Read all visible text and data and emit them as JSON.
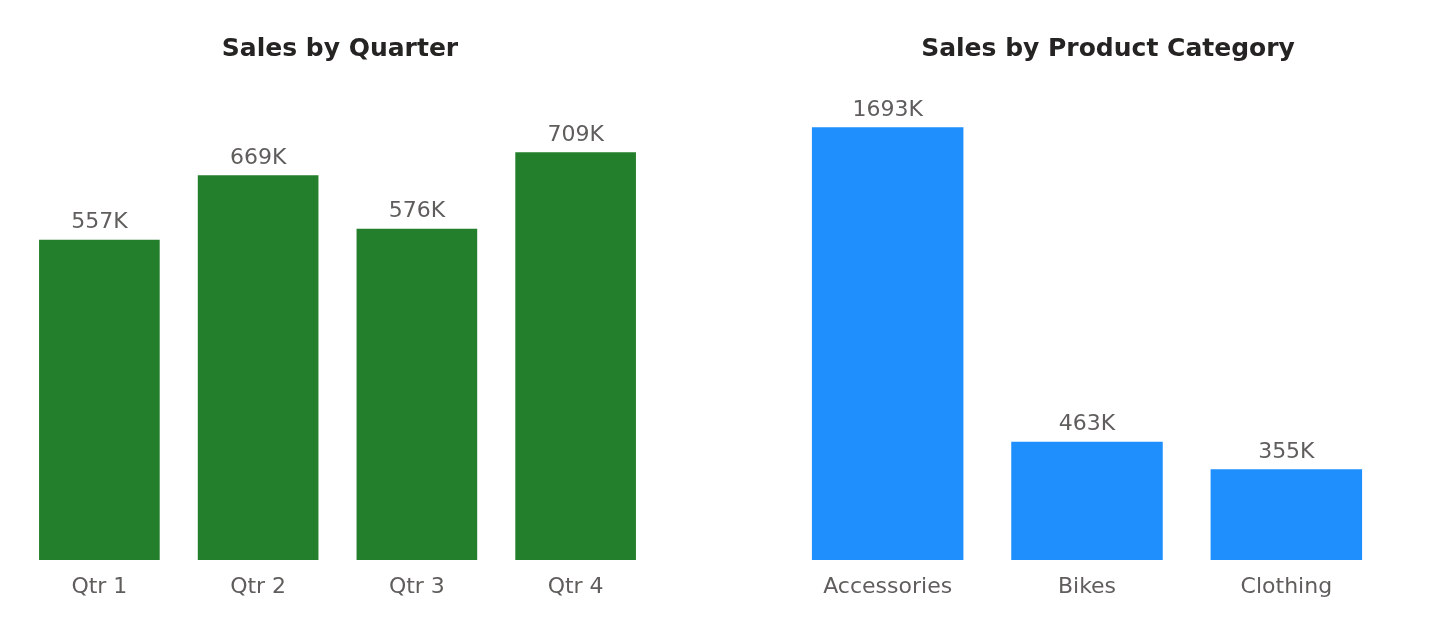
{
  "chart_data": [
    {
      "type": "bar",
      "title": "Sales by Quarter",
      "categories": [
        "Qtr 1",
        "Qtr 2",
        "Qtr 3",
        "Qtr 4"
      ],
      "values": [
        557000,
        669000,
        576000,
        709000
      ],
      "value_labels": [
        "557K",
        "669K",
        "576K",
        "709K"
      ],
      "color": "#237f2b"
    },
    {
      "type": "bar",
      "title": "Sales by Product Category",
      "categories": [
        "Accessories",
        "Bikes",
        "Clothing"
      ],
      "values": [
        1693000,
        463000,
        355000
      ],
      "value_labels": [
        "1693K",
        "463K",
        "355K"
      ],
      "color": "#1f8ffe"
    }
  ]
}
